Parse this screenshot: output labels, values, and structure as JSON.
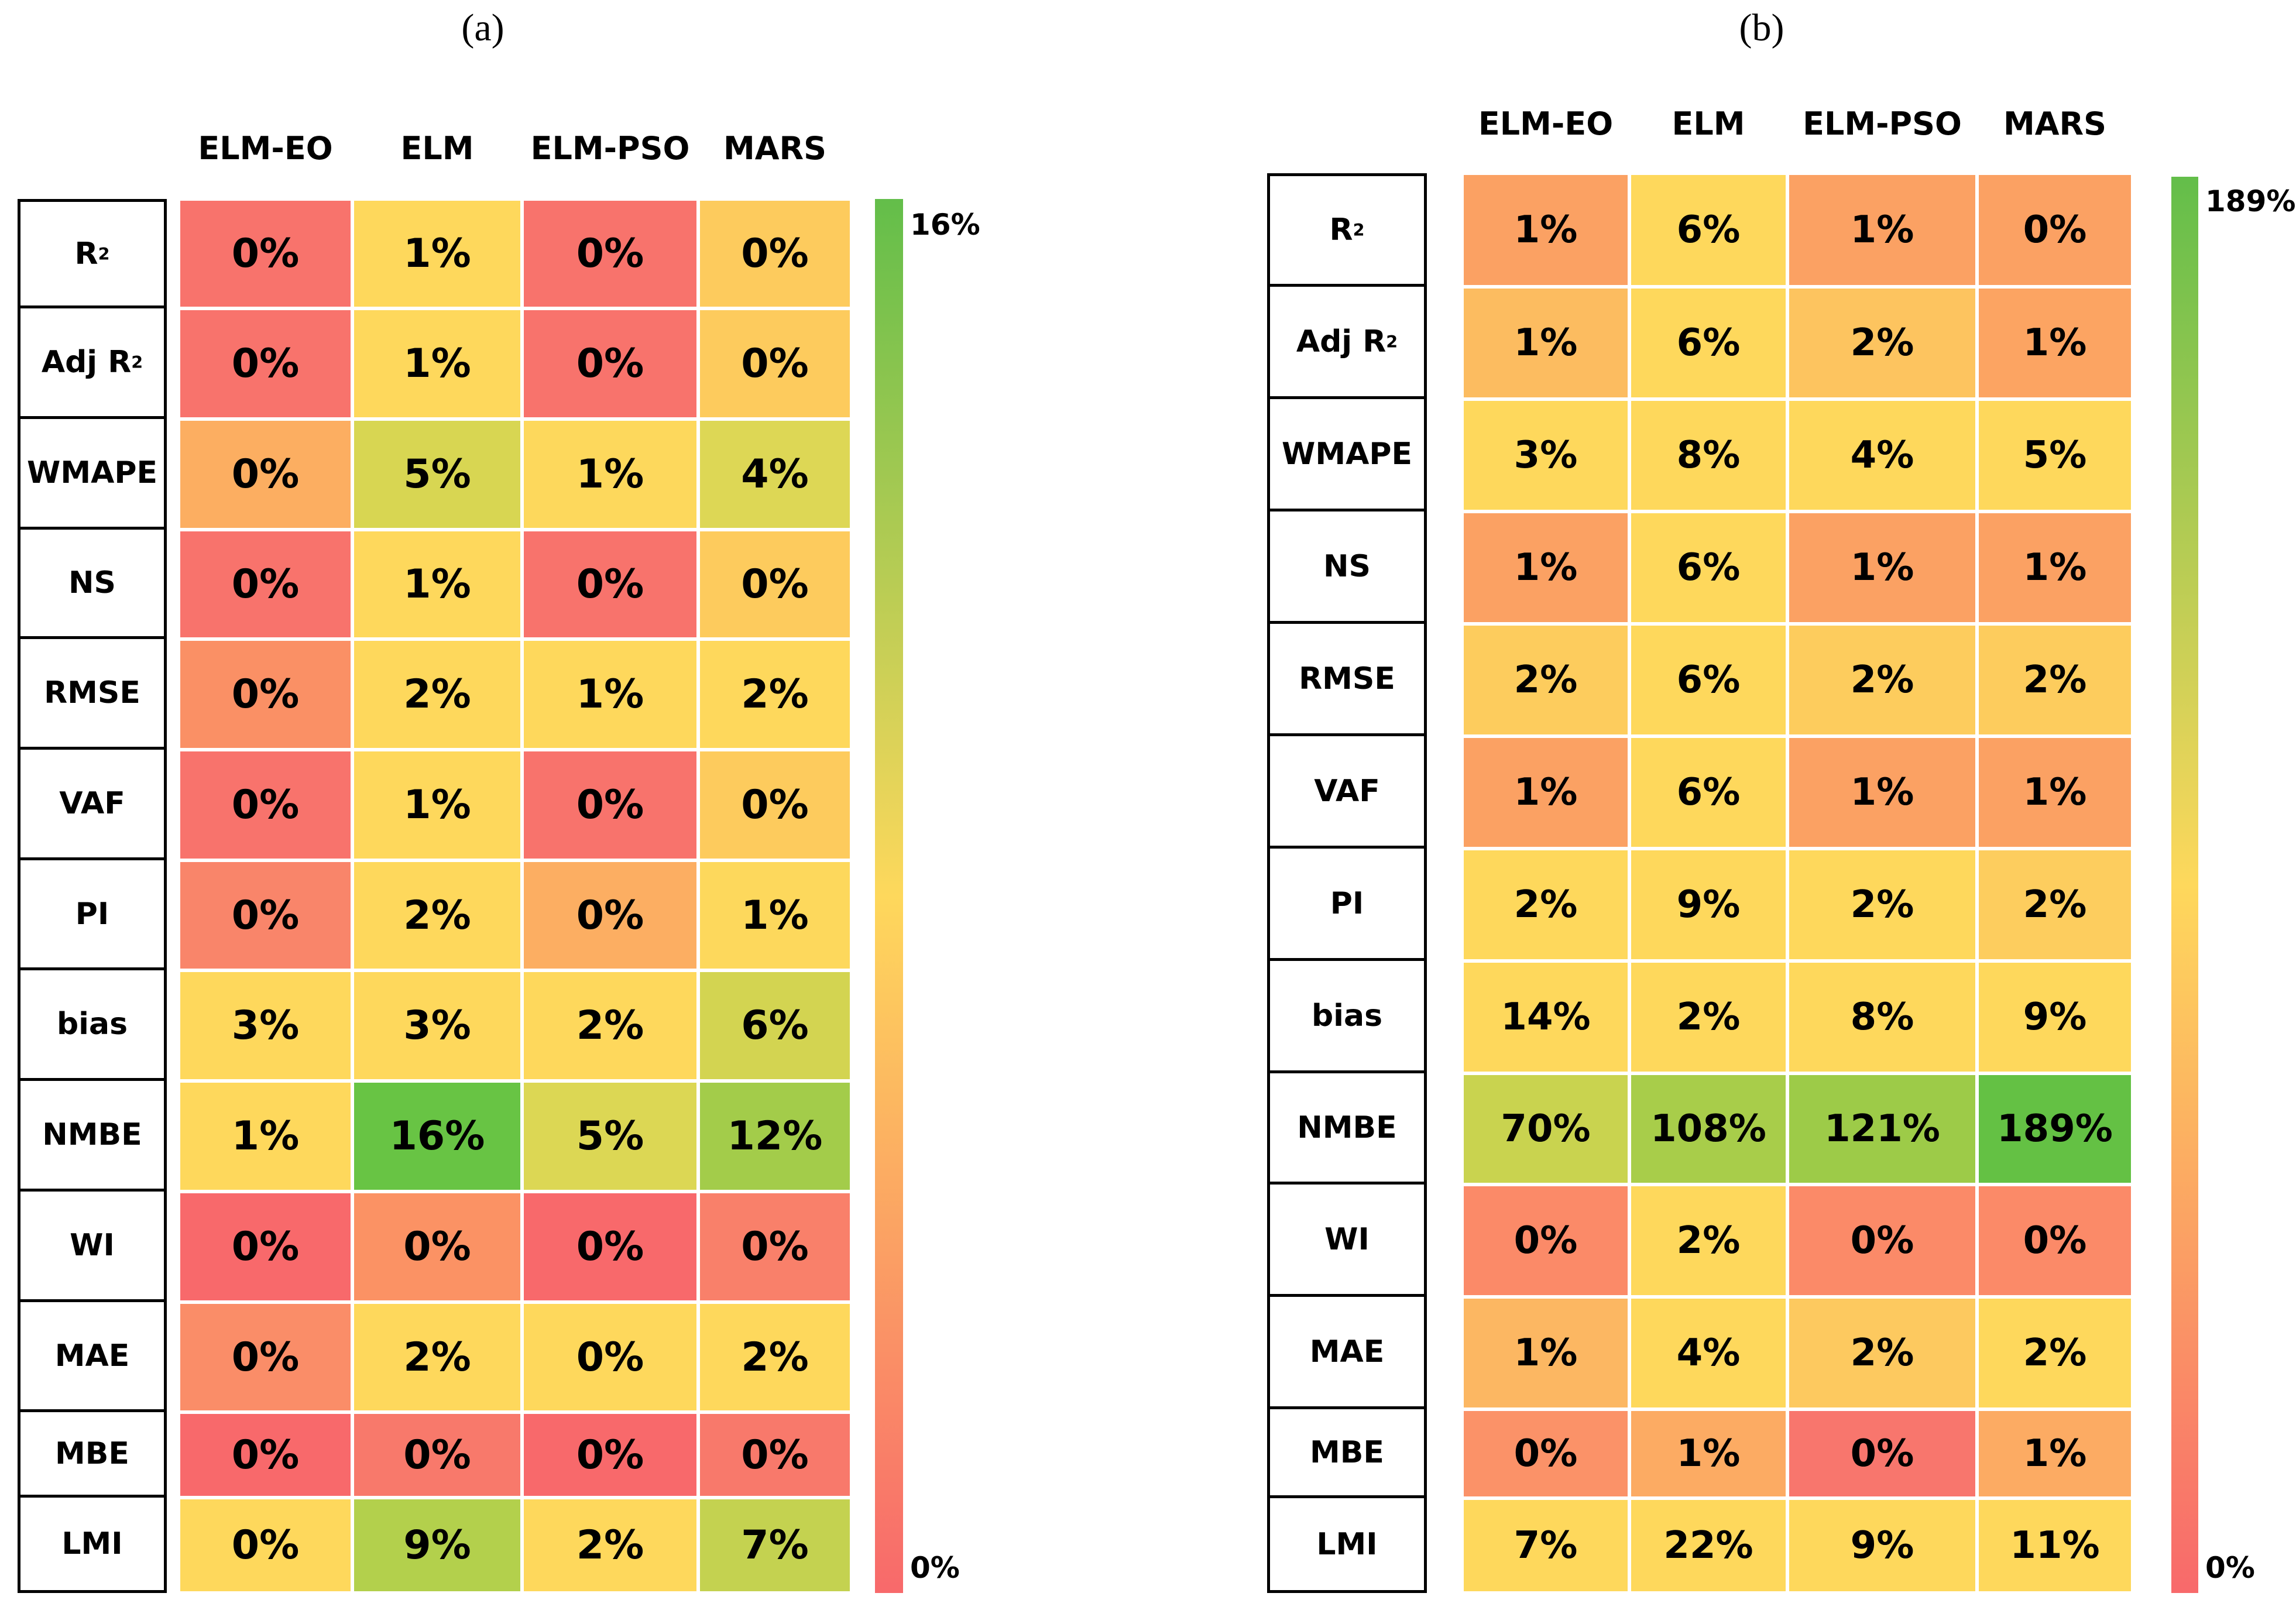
{
  "chart_data": [
    {
      "type": "heatmap",
      "panel_label": "(a)",
      "columns": [
        "ELM-EO",
        "ELM",
        "ELM-PSO",
        "MARS"
      ],
      "rows": [
        "R²",
        "Adj R²",
        "WMAPE",
        "NS",
        "RMSE",
        "VAF",
        "PI",
        "bias",
        "NMBE",
        "WI",
        "MAE",
        "MBE",
        "LMI"
      ],
      "values": [
        [
          0,
          1,
          0,
          0
        ],
        [
          0,
          1,
          0,
          0
        ],
        [
          0,
          5,
          1,
          4
        ],
        [
          0,
          1,
          0,
          0
        ],
        [
          0,
          2,
          1,
          2
        ],
        [
          0,
          1,
          0,
          0
        ],
        [
          0,
          2,
          0,
          1
        ],
        [
          3,
          3,
          2,
          6
        ],
        [
          1,
          16,
          5,
          12
        ],
        [
          0,
          0,
          0,
          0
        ],
        [
          0,
          2,
          0,
          2
        ],
        [
          0,
          0,
          0,
          0
        ],
        [
          0,
          9,
          2,
          7
        ]
      ],
      "cell_labels": [
        [
          "0%",
          "1%",
          "0%",
          "0%"
        ],
        [
          "0%",
          "1%",
          "0%",
          "0%"
        ],
        [
          "0%",
          "5%",
          "1%",
          "4%"
        ],
        [
          "0%",
          "1%",
          "0%",
          "0%"
        ],
        [
          "0%",
          "2%",
          "1%",
          "2%"
        ],
        [
          "0%",
          "1%",
          "0%",
          "0%"
        ],
        [
          "0%",
          "2%",
          "0%",
          "1%"
        ],
        [
          "3%",
          "3%",
          "2%",
          "6%"
        ],
        [
          "1%",
          "16%",
          "5%",
          "12%"
        ],
        [
          "0%",
          "0%",
          "0%",
          "0%"
        ],
        [
          "0%",
          "2%",
          "0%",
          "2%"
        ],
        [
          "0%",
          "0%",
          "0%",
          "0%"
        ],
        [
          "0%",
          "9%",
          "2%",
          "7%"
        ]
      ],
      "colorbar": {
        "max_label": "16%",
        "min_label": "0%",
        "range": [
          0,
          16
        ]
      },
      "colors": {
        "0%": "#f8696b",
        "0% (light)": "#fb8f70",
        "0% (orange)": "#fdaa5f",
        "low": "#fdd25a",
        "mid": "#d9d64f",
        "high": "#63be4a"
      }
    },
    {
      "type": "heatmap",
      "panel_label": "(b)",
      "columns": [
        "ELM-EO",
        "ELM",
        "ELM-PSO",
        "MARS"
      ],
      "rows": [
        "R²",
        "Adj R²",
        "WMAPE",
        "NS",
        "RMSE",
        "VAF",
        "PI",
        "bias",
        "NMBE",
        "WI",
        "MAE",
        "MBE",
        "LMI"
      ],
      "values": [
        [
          1,
          6,
          1,
          0
        ],
        [
          1,
          6,
          2,
          1
        ],
        [
          3,
          8,
          4,
          5
        ],
        [
          1,
          6,
          1,
          1
        ],
        [
          2,
          6,
          2,
          2
        ],
        [
          1,
          6,
          1,
          1
        ],
        [
          2,
          9,
          2,
          2
        ],
        [
          14,
          2,
          8,
          9
        ],
        [
          70,
          108,
          121,
          189
        ],
        [
          0,
          2,
          0,
          0
        ],
        [
          1,
          4,
          2,
          2
        ],
        [
          0,
          1,
          0,
          1
        ],
        [
          7,
          22,
          9,
          11
        ]
      ],
      "cell_labels": [
        [
          "1%",
          "6%",
          "1%",
          "0%"
        ],
        [
          "1%",
          "6%",
          "2%",
          "1%"
        ],
        [
          "3%",
          "8%",
          "4%",
          "5%"
        ],
        [
          "1%",
          "6%",
          "1%",
          "1%"
        ],
        [
          "2%",
          "6%",
          "2%",
          "2%"
        ],
        [
          "1%",
          "6%",
          "1%",
          "1%"
        ],
        [
          "2%",
          "9%",
          "2%",
          "2%"
        ],
        [
          "14%",
          "2%",
          "8%",
          "9%"
        ],
        [
          "70%",
          "108%",
          "121%",
          "189%"
        ],
        [
          "0%",
          "2%",
          "0%",
          "0%"
        ],
        [
          "1%",
          "4%",
          "2%",
          "2%"
        ],
        [
          "0%",
          "1%",
          "0%",
          "1%"
        ],
        [
          "7%",
          "22%",
          "9%",
          "11%"
        ]
      ],
      "colorbar": {
        "max_label": "189%",
        "min_label": "0%",
        "range": [
          0,
          189
        ]
      }
    }
  ],
  "panels": [
    {
      "label": "(a)",
      "cell_colors": [
        [
          "#f8736c",
          "#fed85c",
          "#f8736c",
          "#fdcb5d"
        ],
        [
          "#f8736c",
          "#fed85c",
          "#f8736c",
          "#fdcb5d"
        ],
        [
          "#fcae61",
          "#d8d652",
          "#fdd85c",
          "#ddd755"
        ],
        [
          "#f8736c",
          "#fed85c",
          "#f8736c",
          "#fdcb5d"
        ],
        [
          "#fa9065",
          "#fed85c",
          "#fed85c",
          "#fed85c"
        ],
        [
          "#f8736c",
          "#fed85c",
          "#f8736c",
          "#fdcb5d"
        ],
        [
          "#f9856a",
          "#fed85c",
          "#fcae62",
          "#fdd85c"
        ],
        [
          "#fed85c",
          "#fed85c",
          "#fed85c",
          "#d3d451"
        ],
        [
          "#fed85c",
          "#68c444",
          "#dcd754",
          "#a3cc4a"
        ],
        [
          "#f8696b",
          "#fb9264",
          "#f8696b",
          "#f9806a"
        ],
        [
          "#fa8d68",
          "#fed85c",
          "#fed85c",
          "#fed85c"
        ],
        [
          "#f8696b",
          "#f8796b",
          "#f8696b",
          "#f8796b"
        ],
        [
          "#fed85c",
          "#b3d04c",
          "#fed85c",
          "#c4d250"
        ]
      ]
    },
    {
      "label": "(b)",
      "cell_colors": [
        [
          "#fba163",
          "#fed85c",
          "#fba163",
          "#fba163"
        ],
        [
          "#fcbc60",
          "#fed85c",
          "#fdc45f",
          "#fca462"
        ],
        [
          "#fed85c",
          "#fed85c",
          "#fed85c",
          "#fed85c"
        ],
        [
          "#fba163",
          "#fed85c",
          "#fba163",
          "#fba163"
        ],
        [
          "#fdcc5d",
          "#fed85c",
          "#fdcc5d",
          "#fdcc5d"
        ],
        [
          "#fba163",
          "#fed85c",
          "#fba163",
          "#fba163"
        ],
        [
          "#fed85c",
          "#fed85c",
          "#fed85c",
          "#fdcd5e"
        ],
        [
          "#fed85c",
          "#fed85c",
          "#fed85c",
          "#fed85c"
        ],
        [
          "#c9d34f",
          "#a8cd4a",
          "#9dcb48",
          "#64c144"
        ],
        [
          "#fb8a68",
          "#fed85c",
          "#fb8a68",
          "#fb8a68"
        ],
        [
          "#fcb762",
          "#fed85c",
          "#fdc95f",
          "#fed85c"
        ],
        [
          "#fb9268",
          "#fcab63",
          "#f8766d",
          "#fcab63"
        ],
        [
          "#fed85c",
          "#fed85c",
          "#fed85c",
          "#fed85c"
        ]
      ]
    }
  ],
  "colors": {
    "gradient_top": "#63be4a",
    "gradient_mid": "#fed85c",
    "gradient_bottom": "#f8696b"
  }
}
